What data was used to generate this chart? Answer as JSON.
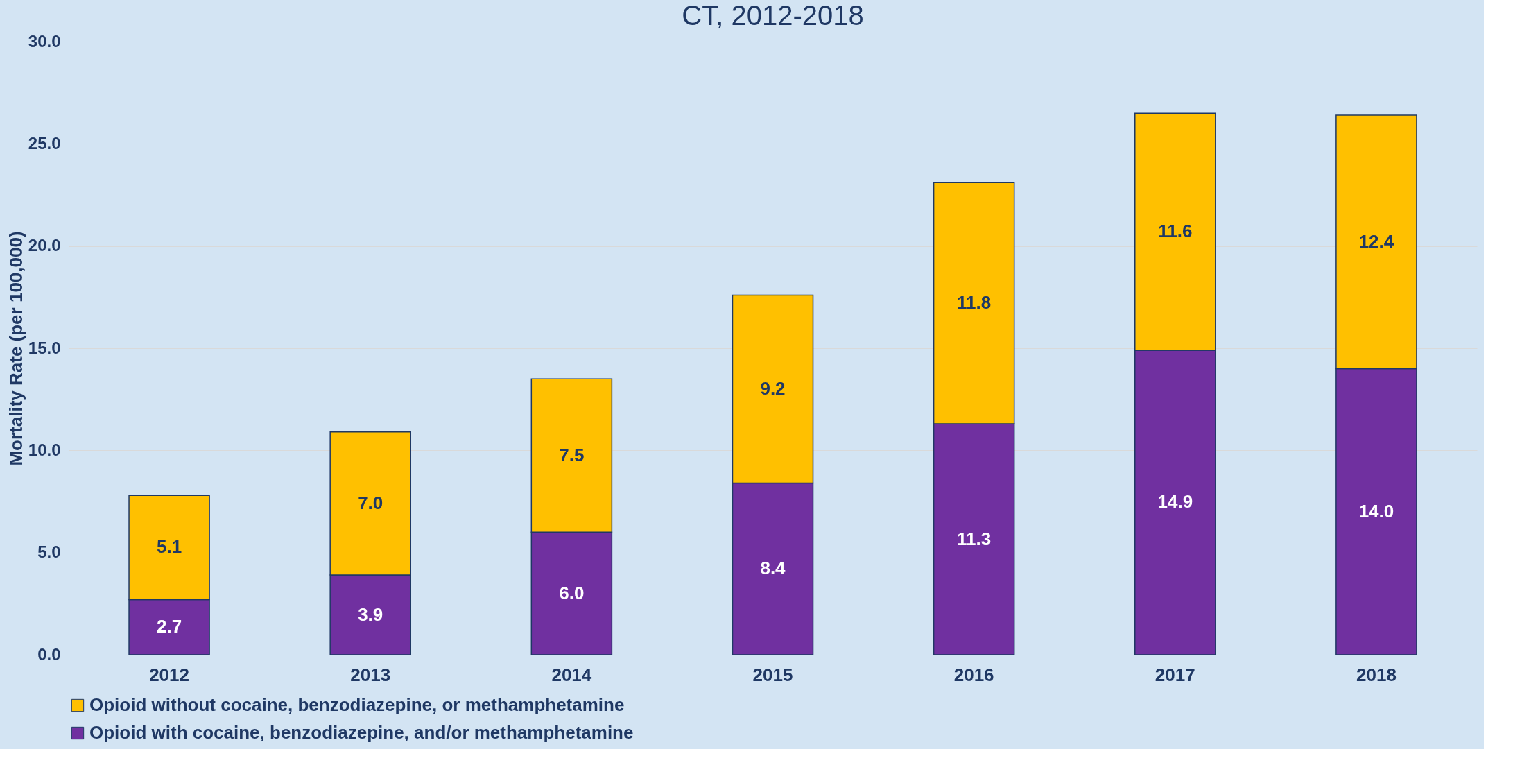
{
  "chart_data": {
    "type": "bar",
    "stacked": true,
    "title": "CT, 2012-2018",
    "ylabel": "Mortality Rate (per 100,000)",
    "categories": [
      "2012",
      "2013",
      "2014",
      "2015",
      "2016",
      "2017",
      "2018"
    ],
    "series": [
      {
        "name": "Opioid with cocaine, benzodiazepine, and/or methamphetamine",
        "color": "#7030a0",
        "values": [
          2.7,
          3.9,
          6.0,
          8.4,
          11.3,
          14.9,
          14.0
        ],
        "value_labels": [
          "2.7",
          "3.9",
          "6.0",
          "8.4",
          "11.3",
          "14.9",
          "14.0"
        ]
      },
      {
        "name": "Opioid without cocaine, benzodiazepine, or methamphetamine",
        "color": "#ffc000",
        "values": [
          5.1,
          7.0,
          7.5,
          9.2,
          11.8,
          11.6,
          12.4
        ],
        "value_labels": [
          "5.1",
          "7.0",
          "7.5",
          "9.2",
          "11.8",
          "11.6",
          "12.4"
        ]
      }
    ],
    "ylim": [
      0,
      30
    ],
    "yticks": [
      {
        "value": 0,
        "label": "0.0"
      },
      {
        "value": 5,
        "label": "5.0"
      },
      {
        "value": 10,
        "label": "10.0"
      },
      {
        "value": 15,
        "label": "15.0"
      },
      {
        "value": 20,
        "label": "20.0"
      },
      {
        "value": 25,
        "label": "25.0"
      },
      {
        "value": 30,
        "label": "30.0"
      }
    ],
    "grid": "y",
    "legend": "bottom"
  }
}
